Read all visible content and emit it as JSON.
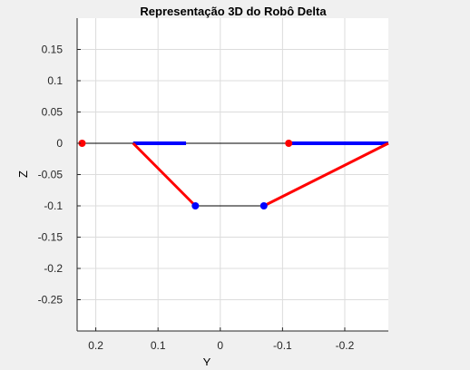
{
  "chart_data": {
    "type": "line",
    "title": "Representação 3D do Robô Delta",
    "xlabel": "Y",
    "ylabel": "Z",
    "x_axis_reversed": true,
    "xlim": [
      0.23,
      -0.27
    ],
    "ylim": [
      -0.3,
      0.2
    ],
    "x_ticks": [
      0.2,
      0.1,
      0,
      -0.1,
      -0.2
    ],
    "x_tick_labels": [
      "0.2",
      "0.1",
      "0",
      "-0.1",
      "-0.2"
    ],
    "y_ticks": [
      0.15,
      0.1,
      0.05,
      0,
      -0.05,
      -0.1,
      -0.15,
      -0.2,
      -0.25
    ],
    "y_tick_labels": [
      "0.15",
      "0.1",
      "0.05",
      "0",
      "-0.05",
      "-0.1",
      "-0.15",
      "-0.2",
      "-0.25"
    ],
    "grid": true,
    "colors": {
      "base": "#000000",
      "arm": "#0000ff",
      "link": "#ff0000",
      "joint_red": "#ff0000",
      "joint_blue": "#0000ff",
      "grid": "#dcdcdc",
      "axes_bg": "#ffffff",
      "figure_bg": "#f0f0f0"
    },
    "lines": [
      {
        "role": "base",
        "color": "#000000",
        "width": 1,
        "points": [
          [
            0.22,
            0
          ],
          [
            -0.27,
            0
          ]
        ]
      },
      {
        "role": "arm",
        "color": "#0000ff",
        "width": 4,
        "points": [
          [
            0.14,
            0
          ],
          [
            0.055,
            0
          ]
        ]
      },
      {
        "role": "arm",
        "color": "#0000ff",
        "width": 4,
        "points": [
          [
            -0.11,
            0
          ],
          [
            -0.27,
            0
          ]
        ]
      },
      {
        "role": "link",
        "color": "#ff0000",
        "width": 3,
        "points": [
          [
            0.14,
            0
          ],
          [
            0.04,
            -0.1
          ]
        ]
      },
      {
        "role": "link",
        "color": "#ff0000",
        "width": 3,
        "points": [
          [
            -0.07,
            -0.1
          ],
          [
            -0.27,
            0
          ]
        ]
      },
      {
        "role": "effector",
        "color": "#000000",
        "width": 1,
        "points": [
          [
            0.04,
            -0.1
          ],
          [
            -0.07,
            -0.1
          ]
        ]
      }
    ],
    "markers": [
      {
        "x": 0.222,
        "y": 0,
        "color": "#ff0000"
      },
      {
        "x": -0.11,
        "y": 0,
        "color": "#ff0000"
      },
      {
        "x": 0.04,
        "y": -0.1,
        "color": "#0000ff"
      },
      {
        "x": -0.07,
        "y": -0.1,
        "color": "#0000ff"
      }
    ]
  }
}
